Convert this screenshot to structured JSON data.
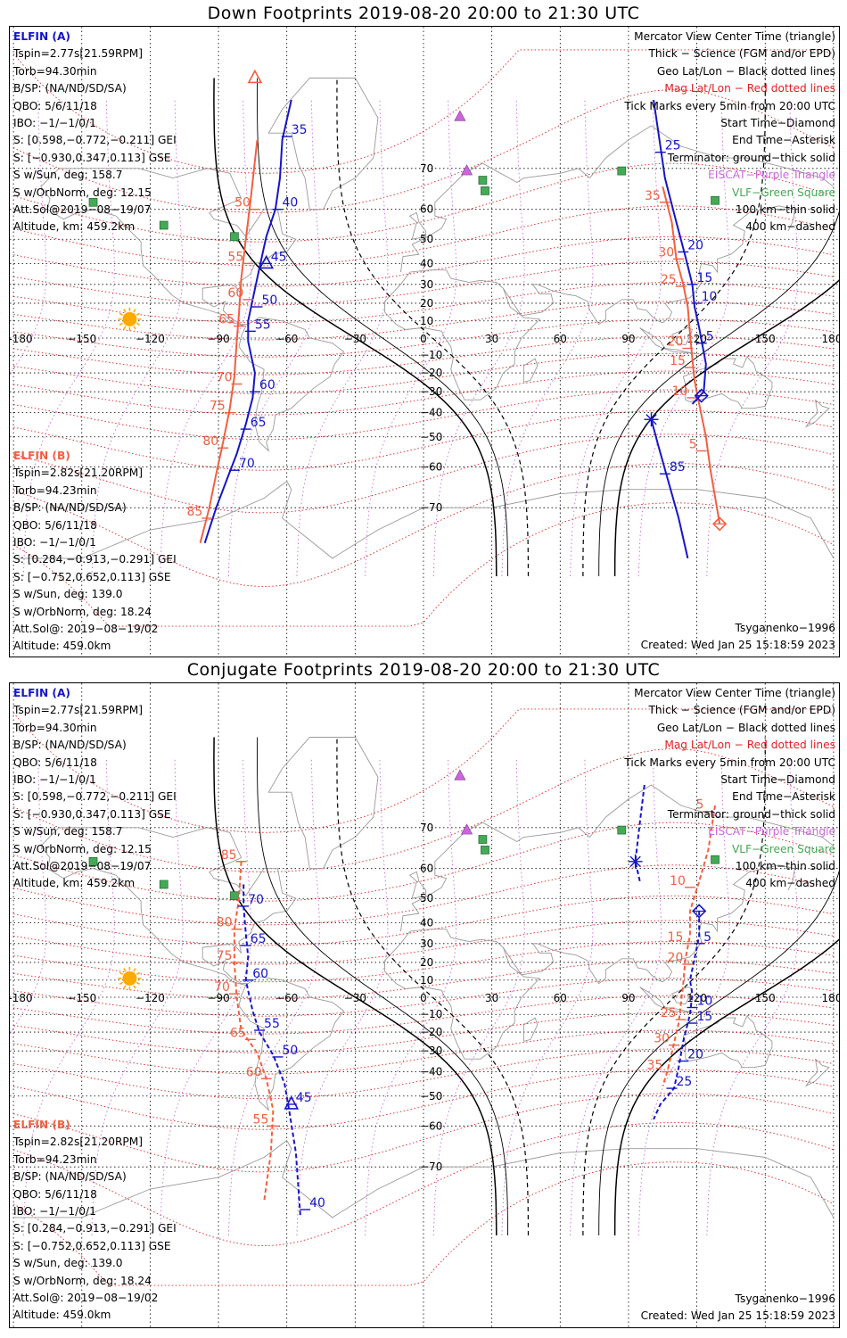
{
  "panels": [
    {
      "title": "Down Footprints 2019-08-20 20:00 to 21:30 UTC",
      "mode": "down"
    },
    {
      "title": "Conjugate Footprints 2019-08-20 20:00 to 21:30 UTC",
      "mode": "conjugate"
    }
  ],
  "elfin_a": {
    "name": "ELFIN (A)",
    "lines": [
      "Tspin=2.77s[21.59RPM]",
      "Torb=94.30min",
      "B/SP: (NA/ND/SD/SA)",
      "QBO: 5/6/11/18",
      "IBO: −1/−1/0/1",
      "S: [0.598,−0.772,−0.211] GEI",
      "S: [−0.930,0.347,0.113] GSE",
      "S w/Sun, deg: 158.7",
      "S w/OrbNorm, deg: 12.15",
      "Att.Sol@2019−08−19/07",
      "Altitude, km: 459.2km"
    ]
  },
  "elfin_b": {
    "name": "ELFIN (B)",
    "lines": [
      "Tspin=2.82s[21.20RPM]",
      "Torb=94.23min",
      "B/SP: (NA/ND/SD/SA)",
      "QBO: 5/6/11/18",
      "IBO: −1/−1/0/1",
      "S: [0.284,−0.913,−0.291] GEI",
      "S: [−0.752,0.652,0.113] GSE",
      "S w/Sun, deg: 139.0",
      "S w/OrbNorm, deg: 18.24",
      "Att.Sol@: 2019−08−19/02",
      "Altitude: 459.0km"
    ]
  },
  "legend": [
    {
      "text": "Mercator View Center Time (triangle)",
      "color": "#000000"
    },
    {
      "text": "Thick − Science (FGM and/or EPD)",
      "color": "#000000"
    },
    {
      "text": "Geo Lat/Lon − Black dotted lines",
      "color": "#000000"
    },
    {
      "text": "Mag Lat/Lon − Red dotted lines",
      "color": "#e02020"
    },
    {
      "text": "Tick Marks every 5min from 20:00 UTC",
      "color": "#000000"
    },
    {
      "text": "Start Time−Diamond",
      "color": "#000000"
    },
    {
      "text": "End Time−Asterisk",
      "color": "#000000"
    },
    {
      "text": "Terminator: ground−thick solid",
      "color": "#000000"
    },
    {
      "text": "EISCAT−Purple Triangle",
      "color": "#cc66dd"
    },
    {
      "text": "VLF−Green Square",
      "color": "#44aa55"
    },
    {
      "text": "100 km−thin solid",
      "color": "#000000"
    },
    {
      "text": "400 km−dashed",
      "color": "#000000"
    }
  ],
  "model": "Tsyganenko−1996",
  "created": "Created: Wed Jan 25 15:18:59 2023",
  "axes": {
    "lon_ticks": [
      -180,
      -150,
      -120,
      -90,
      -60,
      -30,
      0,
      30,
      60,
      90,
      120,
      150,
      180
    ],
    "lon_labels": [
      "-180",
      "−150",
      "−120",
      "−90",
      "−60",
      "−30",
      "0",
      "30",
      "60",
      "90",
      "120",
      "150",
      "180"
    ],
    "lat_ticks": [
      70,
      60,
      50,
      40,
      30,
      20,
      10,
      -10,
      -20,
      -30,
      -40,
      -50,
      -60,
      -70
    ],
    "lat_labels": [
      "70",
      "60",
      "50",
      "40",
      "30",
      "20",
      "10",
      "−10",
      "−20",
      "−30",
      "−40",
      "−50",
      "−60",
      "−70"
    ]
  },
  "colors": {
    "elfin_a": "#1515c8",
    "elfin_b": "#f06040",
    "geo_grid": "#000000",
    "mag_grid": "#e02020",
    "mag_lon": "#cc66dd",
    "coast": "#9a9a9a",
    "eiscat": "#cc66dd",
    "vlf": "#44aa55",
    "sun": "#ffaa00"
  },
  "eiscat_sites": [
    {
      "lon": 16,
      "lat": 78.2
    },
    {
      "lon": 19,
      "lat": 69.6
    }
  ],
  "vlf_sites": [
    {
      "lon": -145,
      "lat": 62
    },
    {
      "lon": -114,
      "lat": 55
    },
    {
      "lon": -83,
      "lat": 51
    },
    {
      "lon": 26,
      "lat": 67.5
    },
    {
      "lon": 27,
      "lat": 65
    },
    {
      "lon": 87,
      "lat": 69.5
    },
    {
      "lon": 128,
      "lat": 62.5
    }
  ],
  "sun": {
    "lon": -129,
    "lat": 11
  },
  "down": {
    "a_track": [
      {
        "lon": -58,
        "lat": 80
      },
      {
        "lon": -62,
        "lat": 75
      },
      {
        "lon": -63,
        "lat": 68
      },
      {
        "lon": -65,
        "lat": 60
      },
      {
        "lon": -69,
        "lat": 51
      },
      {
        "lon": -72,
        "lat": 38
      },
      {
        "lon": -75,
        "lat": 22
      },
      {
        "lon": -77,
        "lat": 10
      },
      {
        "lon": -77,
        "lat": -2
      },
      {
        "lon": -74,
        "lat": -20
      },
      {
        "lon": -75,
        "lat": -33
      },
      {
        "lon": -78,
        "lat": -45
      },
      {
        "lon": -82,
        "lat": -56
      },
      {
        "lon": -86,
        "lat": -63
      },
      {
        "lon": -91,
        "lat": -70
      },
      {
        "lon": -96,
        "lat": -76
      }
    ],
    "a_ticks": [
      {
        "label": "35",
        "lon": -60,
        "lat": 75.5
      },
      {
        "label": "40",
        "lon": -64,
        "lat": 60
      },
      {
        "label": "45",
        "lon": -69,
        "lat": 40
      },
      {
        "label": "50",
        "lon": -73,
        "lat": 18
      },
      {
        "label": "55",
        "lon": -76,
        "lat": 4
      },
      {
        "label": "60",
        "lon": -74,
        "lat": -30
      },
      {
        "label": "65",
        "lon": -78,
        "lat": -47
      },
      {
        "label": "70",
        "lon": -83,
        "lat": -61
      }
    ],
    "a_view": {
      "lon": -69,
      "lat": 40
    },
    "a_track2": [
      {
        "lon": 101,
        "lat": 80
      },
      {
        "lon": 104,
        "lat": 74
      },
      {
        "lon": 106,
        "lat": 68
      },
      {
        "lon": 111,
        "lat": 56
      },
      {
        "lon": 115,
        "lat": 43
      },
      {
        "lon": 118,
        "lat": 30
      },
      {
        "lon": 119,
        "lat": 18
      },
      {
        "lon": 121,
        "lat": 6
      },
      {
        "lon": 124,
        "lat": -15
      },
      {
        "lon": 123,
        "lat": -30
      },
      {
        "lon": 118,
        "lat": -36
      }
    ],
    "a_ticks2": [
      {
        "label": "25",
        "lon": 104,
        "lat": 73
      },
      {
        "label": "20",
        "lon": 114,
        "lat": 45
      },
      {
        "label": "15",
        "lon": 118,
        "lat": 30
      },
      {
        "label": "10",
        "lon": 120,
        "lat": 20
      },
      {
        "label": "5",
        "lon": 122,
        "lat": -3
      }
    ],
    "a_start": {
      "lon": 122,
      "lat": -32
    },
    "a_track3": [
      {
        "lon": 100,
        "lat": -43
      },
      {
        "lon": 103,
        "lat": -53
      },
      {
        "lon": 107,
        "lat": -63
      },
      {
        "lon": 112,
        "lat": -72
      },
      {
        "lon": 116,
        "lat": -78
      }
    ],
    "a_ticks3": [
      {
        "label": "85",
        "lon": 106,
        "lat": -62
      }
    ],
    "a_end": {
      "lon": 100,
      "lat": -43
    },
    "b_track": [
      {
        "lon": -73,
        "lat": 75
      },
      {
        "lon": -76,
        "lat": 62
      },
      {
        "lon": -78,
        "lat": 50
      },
      {
        "lon": -80,
        "lat": 33
      },
      {
        "lon": -81,
        "lat": 14
      },
      {
        "lon": -82,
        "lat": -2
      },
      {
        "lon": -83,
        "lat": -22
      },
      {
        "lon": -85,
        "lat": -38
      },
      {
        "lon": -88,
        "lat": -52
      },
      {
        "lon": -91,
        "lat": -62
      },
      {
        "lon": -94,
        "lat": -70
      },
      {
        "lon": -98,
        "lat": -76
      }
    ],
    "b_ticks": [
      {
        "label": "50",
        "lon": -74,
        "lat": 60
      },
      {
        "label": "55",
        "lon": -77,
        "lat": 40
      },
      {
        "label": "60",
        "lon": -77,
        "lat": 22
      },
      {
        "label": "65",
        "lon": -81,
        "lat": 7
      },
      {
        "label": "70",
        "lon": -82,
        "lat": -26
      },
      {
        "label": "75",
        "lon": -85,
        "lat": -40
      },
      {
        "label": "80",
        "lon": -88,
        "lat": -54
      },
      {
        "label": "85",
        "lon": -95,
        "lat": -72
      }
    ],
    "b_view": {
      "lon": -74,
      "lat": 82
    },
    "b_track2": [
      {
        "lon": 105,
        "lat": 66
      },
      {
        "lon": 109,
        "lat": 56
      },
      {
        "lon": 111,
        "lat": 42
      },
      {
        "lon": 114,
        "lat": 30
      },
      {
        "lon": 116,
        "lat": 18
      },
      {
        "lon": 117,
        "lat": 3
      },
      {
        "lon": 118,
        "lat": -12
      },
      {
        "lon": 119,
        "lat": -24
      },
      {
        "lon": 121,
        "lat": -36
      },
      {
        "lon": 124,
        "lat": -50
      },
      {
        "lon": 126,
        "lat": -61
      },
      {
        "lon": 130,
        "lat": -73
      }
    ],
    "b_ticks2": [
      {
        "label": "35",
        "lon": 106,
        "lat": 62
      },
      {
        "label": "30",
        "lon": 112,
        "lat": 42
      },
      {
        "label": "25",
        "lon": 113,
        "lat": 29
      },
      {
        "label": "20",
        "lon": 116,
        "lat": -6
      },
      {
        "label": "15",
        "lon": 117,
        "lat": -17
      },
      {
        "label": "10",
        "lon": 118,
        "lat": -33
      },
      {
        "label": "5",
        "lon": 122,
        "lat": -55
      }
    ],
    "b_start": {
      "lon": 130,
      "lat": -73
    }
  },
  "conjugate": {
    "a_track": [
      {
        "lon": -79,
        "lat": 55
      },
      {
        "lon": -79,
        "lat": 47
      },
      {
        "lon": -78,
        "lat": 35
      },
      {
        "lon": -77,
        "lat": 23
      },
      {
        "lon": -78,
        "lat": 10
      },
      {
        "lon": -75,
        "lat": -8
      },
      {
        "lon": -72,
        "lat": -20
      },
      {
        "lon": -66,
        "lat": -32
      },
      {
        "lon": -61,
        "lat": -45
      },
      {
        "lon": -59,
        "lat": -55
      },
      {
        "lon": -56,
        "lat": -67
      },
      {
        "lon": -54,
        "lat": -78
      }
    ],
    "a_ticks": [
      {
        "label": "70",
        "lon": -79,
        "lat": 47
      },
      {
        "label": "65",
        "lon": -78,
        "lat": 29
      },
      {
        "label": "60",
        "lon": -77,
        "lat": 10
      },
      {
        "label": "55",
        "lon": -72,
        "lat": -19
      },
      {
        "label": "50",
        "lon": -64,
        "lat": -33
      },
      {
        "label": "45",
        "lon": -58,
        "lat": -53
      },
      {
        "label": "40",
        "lon": -52,
        "lat": -77
      }
    ],
    "a_view": {
      "lon": -58,
      "lat": -53
    },
    "a_track2": [
      {
        "lon": 97,
        "lat": 77
      },
      {
        "lon": 95,
        "lat": 71
      },
      {
        "lon": 93,
        "lat": 62
      },
      {
        "lon": 95,
        "lat": 56
      }
    ],
    "a_end": {
      "lon": 93,
      "lat": 62
    },
    "a_track3": [
      {
        "lon": 121,
        "lat": 45
      },
      {
        "lon": 121,
        "lat": 34
      },
      {
        "lon": 119,
        "lat": 22
      },
      {
        "lon": 117,
        "lat": 10
      },
      {
        "lon": 118,
        "lat": 2
      },
      {
        "lon": 117,
        "lat": -10
      },
      {
        "lon": 114,
        "lat": -25
      },
      {
        "lon": 112,
        "lat": -38
      },
      {
        "lon": 110,
        "lat": -47
      },
      {
        "lon": 104,
        "lat": -53
      },
      {
        "lon": 101,
        "lat": -58
      }
    ],
    "a_ticks3": [
      {
        "label": "5",
        "lon": 121,
        "lat": 30
      },
      {
        "label": "10",
        "lon": 118,
        "lat": -6
      },
      {
        "label": "15",
        "lon": 118,
        "lat": -15
      },
      {
        "label": "20",
        "lon": 114,
        "lat": -35
      },
      {
        "label": "25",
        "lon": 109,
        "lat": -47
      }
    ],
    "a_start": {
      "lon": 121,
      "lat": 45
    },
    "b_track": [
      {
        "lon": -80,
        "lat": 62
      },
      {
        "lon": -81,
        "lat": 50
      },
      {
        "lon": -83,
        "lat": 37
      },
      {
        "lon": -83,
        "lat": 20
      },
      {
        "lon": -82,
        "lat": 0
      },
      {
        "lon": -80,
        "lat": -19
      },
      {
        "lon": -73,
        "lat": -31
      },
      {
        "lon": -69,
        "lat": -43
      },
      {
        "lon": -66,
        "lat": -55
      },
      {
        "lon": -67,
        "lat": -67
      },
      {
        "lon": -70,
        "lat": -76
      }
    ],
    "b_ticks": [
      {
        "label": "85",
        "lon": -80,
        "lat": 62
      },
      {
        "label": "80",
        "lon": -82,
        "lat": 37
      },
      {
        "label": "75",
        "lon": -82,
        "lat": 20
      },
      {
        "label": "70",
        "lon": -83,
        "lat": 2
      },
      {
        "label": "65",
        "lon": -76,
        "lat": -24
      },
      {
        "label": "60",
        "lon": -69,
        "lat": -43
      },
      {
        "label": "55",
        "lon": -66,
        "lat": -60
      }
    ],
    "b_track2": [
      {
        "lon": 128,
        "lat": 74
      },
      {
        "lon": 125,
        "lat": 65
      },
      {
        "lon": 121,
        "lat": 56
      },
      {
        "lon": 117,
        "lat": 45
      },
      {
        "lon": 117,
        "lat": 34
      },
      {
        "lon": 115,
        "lat": 22
      },
      {
        "lon": 114,
        "lat": 8
      },
      {
        "lon": 112,
        "lat": -15
      },
      {
        "lon": 110,
        "lat": -26
      },
      {
        "lon": 107,
        "lat": -40
      },
      {
        "lon": 105,
        "lat": -46
      }
    ],
    "b_ticks2": [
      {
        "label": "5",
        "lon": 125,
        "lat": 73
      },
      {
        "label": "10",
        "lon": 117,
        "lat": 54
      },
      {
        "label": "15",
        "lon": 116,
        "lat": 30
      },
      {
        "label": "20",
        "lon": 116,
        "lat": 19
      },
      {
        "label": "25",
        "lon": 113,
        "lat": -13
      },
      {
        "label": "30",
        "lon": 110,
        "lat": -27
      },
      {
        "label": "35",
        "lon": 107,
        "lat": -40
      }
    ]
  }
}
